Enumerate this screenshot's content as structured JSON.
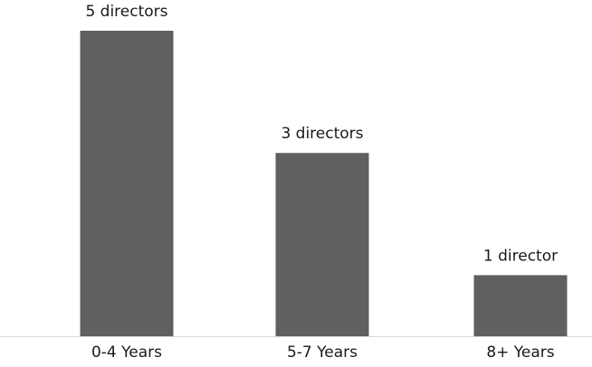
{
  "chart_data": {
    "type": "bar",
    "categories": [
      "0-4 Years",
      "5-7 Years",
      "8+ Years"
    ],
    "values": [
      5,
      3,
      1
    ],
    "value_labels": [
      "5 directors",
      "3 directors",
      "1 director"
    ],
    "color": "#606060"
  }
}
